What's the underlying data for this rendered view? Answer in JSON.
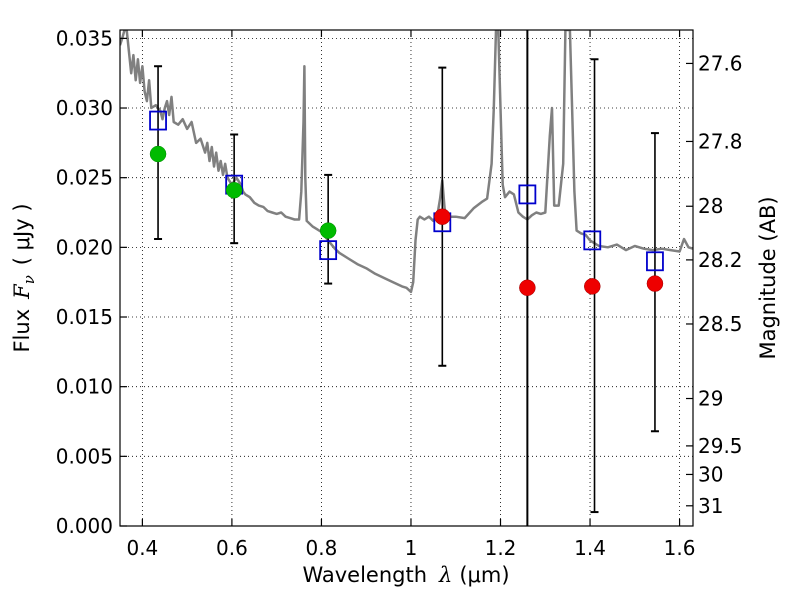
{
  "chart_data": {
    "type": "scatter",
    "xlabel_prefix": "Wavelength",
    "xlabel_symbol": "λ",
    "xlabel_unit": "(μm)",
    "ylabel_prefix": "Flux",
    "ylabel_symbol": "F",
    "ylabel_subscript": "ν",
    "ylabel_unit": "( μJy )",
    "y2label": "Magnitude (AB)",
    "xlim": [
      0.35,
      1.63
    ],
    "ylim": [
      0.0,
      0.0356
    ],
    "xticks": [
      0.4,
      0.6,
      0.8,
      1.0,
      1.2,
      1.4,
      1.6
    ],
    "xtick_labels": [
      "0.4",
      "0.6",
      "0.8",
      "1",
      "1.2",
      "1.4",
      "1.6"
    ],
    "yticks": [
      0.0,
      0.005,
      0.01,
      0.015,
      0.02,
      0.025,
      0.03,
      0.035
    ],
    "ytick_labels": [
      "0.000",
      "0.005",
      "0.010",
      "0.015",
      "0.020",
      "0.025",
      "0.030",
      "0.035"
    ],
    "y2ticks": [
      {
        "label": "27.6",
        "flux": 0.0332
      },
      {
        "label": "27.8",
        "flux": 0.0276
      },
      {
        "label": "28",
        "flux": 0.02295
      },
      {
        "label": "28.2",
        "flux": 0.0191
      },
      {
        "label": "28.5",
        "flux": 0.0145
      },
      {
        "label": "29",
        "flux": 0.00915
      },
      {
        "label": "29.5",
        "flux": 0.00575
      },
      {
        "label": "30",
        "flux": 0.0037
      },
      {
        "label": "31",
        "flux": 0.00145
      }
    ],
    "grid": true,
    "vertical_line_x": 1.26,
    "errorbars": [
      {
        "x": 0.435,
        "low": 0.0206,
        "high": 0.033
      },
      {
        "x": 0.605,
        "low": 0.0203,
        "high": 0.0281
      },
      {
        "x": 0.815,
        "low": 0.0174,
        "high": 0.0252
      },
      {
        "x": 1.07,
        "low": 0.0115,
        "high": 0.0329
      },
      {
        "x": 1.41,
        "low": 0.001,
        "high": 0.0335
      },
      {
        "x": 1.545,
        "low": 0.0068,
        "high": 0.0282
      }
    ],
    "model_squares": [
      {
        "x": 0.435,
        "y": 0.0291
      },
      {
        "x": 0.605,
        "y": 0.0245
      },
      {
        "x": 0.815,
        "y": 0.0198
      },
      {
        "x": 1.07,
        "y": 0.0218
      },
      {
        "x": 1.26,
        "y": 0.0238
      },
      {
        "x": 1.405,
        "y": 0.0205
      },
      {
        "x": 1.545,
        "y": 0.019
      }
    ],
    "green_points": [
      {
        "x": 0.435,
        "y": 0.0267
      },
      {
        "x": 0.605,
        "y": 0.0241
      },
      {
        "x": 0.815,
        "y": 0.0212
      }
    ],
    "red_points": [
      {
        "x": 1.07,
        "y": 0.0222
      },
      {
        "x": 1.26,
        "y": 0.0171
      },
      {
        "x": 1.405,
        "y": 0.0172
      },
      {
        "x": 1.545,
        "y": 0.0174
      }
    ],
    "spectrum": [
      [
        0.35,
        0.0345
      ],
      [
        0.355,
        0.035
      ],
      [
        0.36,
        0.0356
      ],
      [
        0.365,
        0.0356
      ],
      [
        0.37,
        0.034
      ],
      [
        0.375,
        0.0325
      ],
      [
        0.38,
        0.0338
      ],
      [
        0.385,
        0.032
      ],
      [
        0.39,
        0.0335
      ],
      [
        0.395,
        0.0318
      ],
      [
        0.4,
        0.033
      ],
      [
        0.405,
        0.0312
      ],
      [
        0.41,
        0.0305
      ],
      [
        0.415,
        0.032
      ],
      [
        0.42,
        0.03
      ],
      [
        0.43,
        0.0302
      ],
      [
        0.44,
        0.0298
      ],
      [
        0.445,
        0.0292
      ],
      [
        0.45,
        0.03
      ],
      [
        0.455,
        0.0305
      ],
      [
        0.46,
        0.0295
      ],
      [
        0.465,
        0.0308
      ],
      [
        0.47,
        0.029
      ],
      [
        0.48,
        0.0288
      ],
      [
        0.49,
        0.0292
      ],
      [
        0.5,
        0.0285
      ],
      [
        0.51,
        0.029
      ],
      [
        0.52,
        0.0275
      ],
      [
        0.53,
        0.0278
      ],
      [
        0.54,
        0.0268
      ],
      [
        0.545,
        0.0275
      ],
      [
        0.55,
        0.0262
      ],
      [
        0.555,
        0.0272
      ],
      [
        0.56,
        0.0258
      ],
      [
        0.565,
        0.0268
      ],
      [
        0.57,
        0.0255
      ],
      [
        0.575,
        0.0262
      ],
      [
        0.58,
        0.0252
      ],
      [
        0.585,
        0.026
      ],
      [
        0.59,
        0.025
      ],
      [
        0.6,
        0.0245
      ],
      [
        0.61,
        0.025
      ],
      [
        0.62,
        0.0245
      ],
      [
        0.625,
        0.024
      ],
      [
        0.63,
        0.0238
      ],
      [
        0.64,
        0.0236
      ],
      [
        0.65,
        0.0232
      ],
      [
        0.66,
        0.023
      ],
      [
        0.67,
        0.0229
      ],
      [
        0.68,
        0.0226
      ],
      [
        0.69,
        0.0225
      ],
      [
        0.7,
        0.0224
      ],
      [
        0.71,
        0.0225
      ],
      [
        0.72,
        0.0222
      ],
      [
        0.73,
        0.0221
      ],
      [
        0.74,
        0.022
      ],
      [
        0.75,
        0.022
      ],
      [
        0.755,
        0.024
      ],
      [
        0.76,
        0.029
      ],
      [
        0.762,
        0.033
      ],
      [
        0.764,
        0.025
      ],
      [
        0.767,
        0.0219
      ],
      [
        0.78,
        0.0215
      ],
      [
        0.79,
        0.0213
      ],
      [
        0.8,
        0.0211
      ],
      [
        0.81,
        0.0207
      ],
      [
        0.82,
        0.0203
      ],
      [
        0.83,
        0.0199
      ],
      [
        0.84,
        0.0196
      ],
      [
        0.86,
        0.0192
      ],
      [
        0.88,
        0.0188
      ],
      [
        0.9,
        0.0185
      ],
      [
        0.92,
        0.0181
      ],
      [
        0.94,
        0.0178
      ],
      [
        0.96,
        0.0175
      ],
      [
        0.98,
        0.0172
      ],
      [
        0.99,
        0.0171
      ],
      [
        1.0,
        0.0168
      ],
      [
        1.005,
        0.0175
      ],
      [
        1.01,
        0.0205
      ],
      [
        1.015,
        0.022
      ],
      [
        1.02,
        0.0222
      ],
      [
        1.03,
        0.022
      ],
      [
        1.04,
        0.0222
      ],
      [
        1.05,
        0.0219
      ],
      [
        1.06,
        0.0225
      ],
      [
        1.065,
        0.0235
      ],
      [
        1.07,
        0.0248
      ],
      [
        1.075,
        0.0228
      ],
      [
        1.08,
        0.0222
      ],
      [
        1.1,
        0.0222
      ],
      [
        1.12,
        0.0221
      ],
      [
        1.14,
        0.0228
      ],
      [
        1.16,
        0.0233
      ],
      [
        1.17,
        0.0235
      ],
      [
        1.18,
        0.026
      ],
      [
        1.185,
        0.03
      ],
      [
        1.19,
        0.0356
      ],
      [
        1.195,
        0.0356
      ],
      [
        1.2,
        0.03
      ],
      [
        1.205,
        0.0245
      ],
      [
        1.21,
        0.0236
      ],
      [
        1.22,
        0.024
      ],
      [
        1.23,
        0.0238
      ],
      [
        1.24,
        0.0225
      ],
      [
        1.25,
        0.0222
      ],
      [
        1.26,
        0.022
      ],
      [
        1.27,
        0.0223
      ],
      [
        1.28,
        0.0225
      ],
      [
        1.29,
        0.0224
      ],
      [
        1.3,
        0.0225
      ],
      [
        1.31,
        0.028
      ],
      [
        1.315,
        0.03
      ],
      [
        1.32,
        0.023
      ],
      [
        1.33,
        0.023
      ],
      [
        1.34,
        0.026
      ],
      [
        1.345,
        0.0356
      ],
      [
        1.355,
        0.0356
      ],
      [
        1.36,
        0.03
      ],
      [
        1.365,
        0.024
      ],
      [
        1.37,
        0.0212
      ],
      [
        1.38,
        0.021
      ],
      [
        1.39,
        0.0209
      ],
      [
        1.4,
        0.0205
      ],
      [
        1.42,
        0.0201
      ],
      [
        1.44,
        0.02
      ],
      [
        1.46,
        0.0202
      ],
      [
        1.48,
        0.0198
      ],
      [
        1.5,
        0.0201
      ],
      [
        1.52,
        0.0199
      ],
      [
        1.54,
        0.0198
      ],
      [
        1.56,
        0.0199
      ],
      [
        1.58,
        0.0198
      ],
      [
        1.6,
        0.0197
      ],
      [
        1.61,
        0.0206
      ],
      [
        1.62,
        0.02
      ],
      [
        1.63,
        0.0199
      ]
    ],
    "colors": {
      "spectrum": "#808080",
      "errorbar": "#000000",
      "square": "#0000cc",
      "green": "#00bb00",
      "red": "#ee0000",
      "grid": "#000000"
    }
  }
}
